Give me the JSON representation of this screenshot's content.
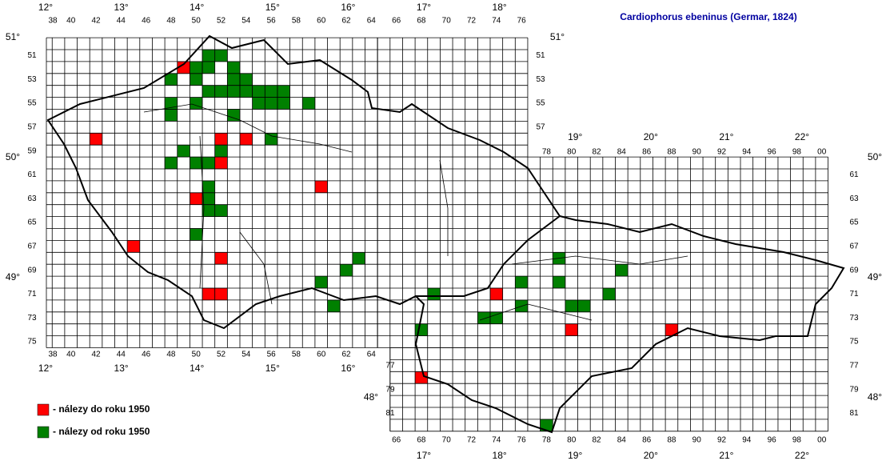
{
  "map": {
    "title": "Cardiophorus ebeninus (Germar, 1824)",
    "legend": [
      {
        "label": "- nálezy do roku 1950",
        "color": "#ff0000",
        "cells": [
          [
            49,
            52
          ],
          [
            42,
            58
          ],
          [
            52,
            58
          ],
          [
            54,
            58
          ],
          [
            52,
            60
          ],
          [
            60,
            62
          ],
          [
            50,
            63
          ],
          [
            45,
            67
          ],
          [
            52,
            68
          ],
          [
            51,
            71
          ],
          [
            52,
            71
          ],
          [
            74,
            71
          ],
          [
            80,
            74
          ],
          [
            88,
            74
          ],
          [
            68,
            78
          ]
        ]
      },
      {
        "label": "- nálezy od roku 1950",
        "color": "#008000",
        "cells": [
          [
            51,
            51
          ],
          [
            52,
            51
          ],
          [
            50,
            52
          ],
          [
            51,
            52
          ],
          [
            53,
            52
          ],
          [
            48,
            53
          ],
          [
            50,
            53
          ],
          [
            53,
            53
          ],
          [
            54,
            53
          ],
          [
            51,
            54
          ],
          [
            52,
            54
          ],
          [
            53,
            54
          ],
          [
            54,
            54
          ],
          [
            55,
            54
          ],
          [
            56,
            54
          ],
          [
            57,
            54
          ],
          [
            48,
            55
          ],
          [
            50,
            55
          ],
          [
            55,
            55
          ],
          [
            56,
            55
          ],
          [
            57,
            55
          ],
          [
            59,
            55
          ],
          [
            48,
            56
          ],
          [
            53,
            56
          ],
          [
            56,
            58
          ],
          [
            49,
            59
          ],
          [
            52,
            59
          ],
          [
            48,
            60
          ],
          [
            50,
            60
          ],
          [
            51,
            60
          ],
          [
            51,
            62
          ],
          [
            51,
            63
          ],
          [
            51,
            64
          ],
          [
            52,
            64
          ],
          [
            50,
            66
          ],
          [
            63,
            68
          ],
          [
            62,
            69
          ],
          [
            79,
            68
          ],
          [
            84,
            69
          ],
          [
            60,
            70
          ],
          [
            76,
            70
          ],
          [
            79,
            70
          ],
          [
            69,
            71
          ],
          [
            83,
            71
          ],
          [
            61,
            72
          ],
          [
            76,
            72
          ],
          [
            80,
            72
          ],
          [
            81,
            72
          ],
          [
            73,
            73
          ],
          [
            74,
            73
          ],
          [
            68,
            74
          ],
          [
            78,
            82
          ]
        ]
      }
    ],
    "col_labels_top_west": [
      38,
      40,
      42,
      44,
      46,
      48,
      50,
      52,
      54,
      56,
      58,
      60,
      62,
      64,
      66,
      68,
      70,
      72,
      74,
      76
    ],
    "col_labels_top_east": [
      78,
      80,
      82,
      84,
      86,
      88,
      90,
      92,
      94,
      96,
      98,
      {
        "value": 100,
        "label": "00"
      }
    ],
    "col_labels_bottom_west": [
      38,
      40,
      42,
      44,
      46,
      48,
      50,
      52,
      54,
      56,
      58,
      60,
      62,
      64
    ],
    "col_labels_bottom_east": [
      66,
      68,
      70,
      72,
      74,
      76,
      78,
      80,
      82,
      84,
      86,
      88,
      90,
      92,
      94,
      96,
      98,
      {
        "value": 100,
        "label": "00"
      }
    ],
    "row_labels_left": [
      51,
      53,
      55,
      57,
      59,
      61,
      63,
      65,
      67,
      69,
      71,
      73,
      75
    ],
    "row_labels_right_west": [
      51,
      53,
      55,
      57
    ],
    "row_labels_right_east": [
      61,
      63,
      65,
      67,
      69,
      71,
      73,
      75,
      77,
      79,
      81
    ],
    "row_labels_left_east": [
      77,
      79,
      81
    ],
    "lon_top_west": [
      {
        "value": 12,
        "label": "12°"
      },
      {
        "value": 13,
        "label": "13°"
      },
      {
        "value": 14,
        "label": "14°"
      },
      {
        "value": 15,
        "label": "15°"
      },
      {
        "value": 16,
        "label": "16°"
      },
      {
        "value": 17,
        "label": "17°"
      },
      {
        "value": 18,
        "label": "18°"
      }
    ],
    "lon_top_east": [
      {
        "value": 19,
        "label": "19°"
      },
      {
        "value": 20,
        "label": "20°"
      },
      {
        "value": 21,
        "label": "21°"
      },
      {
        "value": 22,
        "label": "22°"
      }
    ],
    "lon_bottom_west": [
      {
        "value": 12,
        "label": "12°"
      },
      {
        "value": 13,
        "label": "13°"
      },
      {
        "value": 14,
        "label": "14°"
      },
      {
        "value": 15,
        "label": "15°"
      },
      {
        "value": 16,
        "label": "16°"
      }
    ],
    "lon_bottom_east": [
      {
        "value": 17,
        "label": "17°"
      },
      {
        "value": 18,
        "label": "18°"
      },
      {
        "value": 19,
        "label": "19°"
      },
      {
        "value": 20,
        "label": "20°"
      },
      {
        "value": 21,
        "label": "21°"
      },
      {
        "value": 22,
        "label": "22°"
      }
    ],
    "lat_left": [
      {
        "value": 51,
        "label": "51°"
      },
      {
        "value": 50,
        "label": "50°"
      },
      {
        "value": 49,
        "label": "49°"
      }
    ],
    "lat_right_west": [
      {
        "value": 51,
        "label": "51°"
      }
    ],
    "lat_right_east": [
      {
        "value": 50,
        "label": "50°"
      },
      {
        "value": 49,
        "label": "49°"
      },
      {
        "value": 48,
        "label": "48°"
      }
    ],
    "lat_left_east": [
      {
        "value": 48,
        "label": "48°"
      }
    ]
  }
}
